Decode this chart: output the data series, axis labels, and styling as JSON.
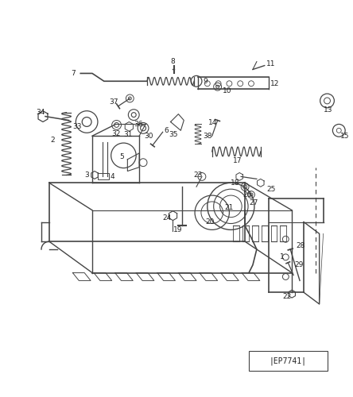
{
  "fig_width": 4.44,
  "fig_height": 5.0,
  "dpi": 100,
  "bg_color": "#ffffff",
  "line_color": "#444444",
  "text_color": "#222222",
  "diagram_id": "EP7741"
}
